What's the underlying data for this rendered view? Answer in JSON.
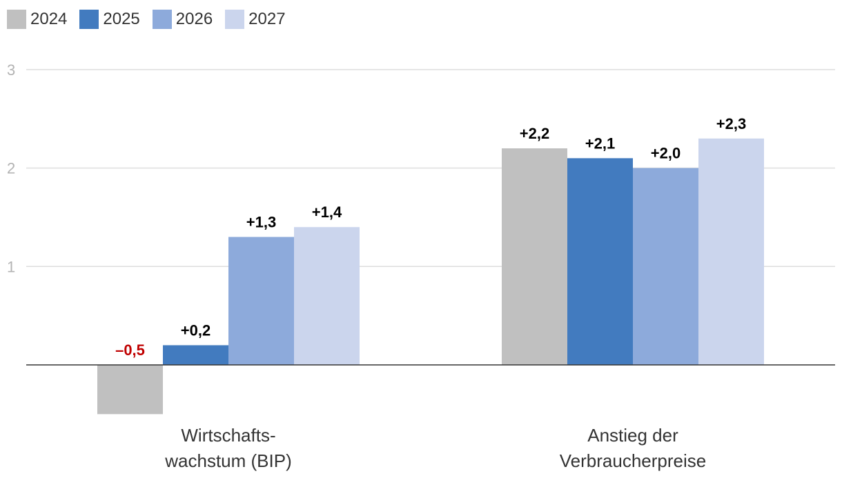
{
  "chart_data": {
    "type": "bar",
    "categories": [
      [
        "Wirtschafts-",
        "wachstum (BIP)"
      ],
      [
        "Anstieg der",
        "Verbraucherpreise"
      ]
    ],
    "series": [
      {
        "name": "2024",
        "color": "#c0c0c0",
        "values": [
          -0.5,
          2.2
        ],
        "labels": [
          "–0,5",
          "+2,2"
        ]
      },
      {
        "name": "2025",
        "color": "#427bbf",
        "values": [
          0.2,
          2.1
        ],
        "labels": [
          "+0,2",
          "+2,1"
        ]
      },
      {
        "name": "2026",
        "color": "#8daadb",
        "values": [
          1.3,
          2.0
        ],
        "labels": [
          "+1,3",
          "+2,0"
        ]
      },
      {
        "name": "2027",
        "color": "#cbd5ed",
        "values": [
          1.4,
          2.3
        ],
        "labels": [
          "+1,4",
          "+2,3"
        ]
      }
    ],
    "yticks": [
      1,
      2,
      3
    ],
    "ylim": [
      -0.5,
      3
    ],
    "negative_label_color": "#c00000",
    "label_color": "#000000",
    "grid": true,
    "legend": "top-left",
    "title": "",
    "xlabel": "",
    "ylabel": ""
  }
}
